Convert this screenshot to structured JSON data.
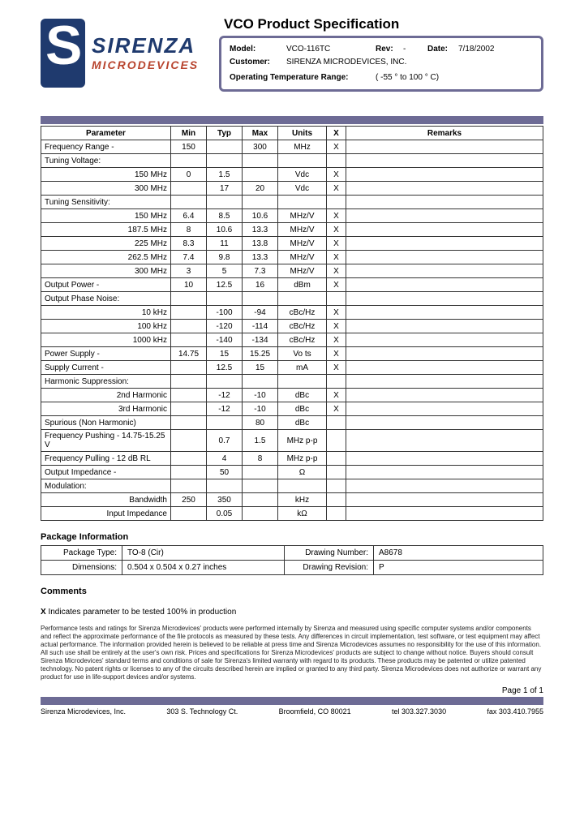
{
  "header": {
    "title": "VCO Product Specification",
    "model_label": "Model:",
    "model": "VCO-116TC",
    "rev_label": "Rev:",
    "rev": "-",
    "date_label": "Date:",
    "date": "7/18/2002",
    "customer_label": "Customer:",
    "customer": "SIRENZA MICRODEVICES, INC.",
    "temp_label": "Operating Temperature Range:",
    "temp": "( -55 ° to 100 ° C)",
    "logo_top": "SIRENZA",
    "logo_bottom": "MICRODEVICES"
  },
  "columns": [
    "Parameter",
    "Min",
    "Typ",
    "Max",
    "Units",
    "X",
    "Remarks"
  ],
  "rows": [
    {
      "param": "Frequency Range -",
      "align": "l",
      "min": "150",
      "typ": "",
      "max": "300",
      "units": "MHz",
      "x": "X",
      "remarks": ""
    },
    {
      "param": "Tuning Voltage:",
      "align": "l",
      "min": "",
      "typ": "",
      "max": "",
      "units": "",
      "x": "",
      "remarks": ""
    },
    {
      "param": "150 MHz",
      "align": "r",
      "min": "0",
      "typ": "1.5",
      "max": "",
      "units": "Vdc",
      "x": "X",
      "remarks": ""
    },
    {
      "param": "300 MHz",
      "align": "r",
      "min": "",
      "typ": "17",
      "max": "20",
      "units": "Vdc",
      "x": "X",
      "remarks": ""
    },
    {
      "param": "Tuning Sensitivity:",
      "align": "l",
      "min": "",
      "typ": "",
      "max": "",
      "units": "",
      "x": "",
      "remarks": ""
    },
    {
      "param": "150 MHz",
      "align": "r",
      "min": "6.4",
      "typ": "8.5",
      "max": "10.6",
      "units": "MHz/V",
      "x": "X",
      "remarks": ""
    },
    {
      "param": "187.5 MHz",
      "align": "r",
      "min": "8",
      "typ": "10.6",
      "max": "13.3",
      "units": "MHz/V",
      "x": "X",
      "remarks": ""
    },
    {
      "param": "225 MHz",
      "align": "r",
      "min": "8.3",
      "typ": "11",
      "max": "13.8",
      "units": "MHz/V",
      "x": "X",
      "remarks": ""
    },
    {
      "param": "262.5 MHz",
      "align": "r",
      "min": "7.4",
      "typ": "9.8",
      "max": "13.3",
      "units": "MHz/V",
      "x": "X",
      "remarks": ""
    },
    {
      "param": "300 MHz",
      "align": "r",
      "min": "3",
      "typ": "5",
      "max": "7.3",
      "units": "MHz/V",
      "x": "X",
      "remarks": ""
    },
    {
      "param": "Output Power -",
      "align": "l",
      "min": "10",
      "typ": "12.5",
      "max": "16",
      "units": "dBm",
      "x": "X",
      "remarks": ""
    },
    {
      "param": "Output Phase Noise:",
      "align": "l",
      "min": "",
      "typ": "",
      "max": "",
      "units": "",
      "x": "",
      "remarks": ""
    },
    {
      "param": "10 kHz",
      "align": "r",
      "min": "",
      "typ": "-100",
      "max": "-94",
      "units": "cBc/Hz",
      "x": "X",
      "remarks": ""
    },
    {
      "param": "100 kHz",
      "align": "r",
      "min": "",
      "typ": "-120",
      "max": "-114",
      "units": "cBc/Hz",
      "x": "X",
      "remarks": ""
    },
    {
      "param": "1000 kHz",
      "align": "r",
      "min": "",
      "typ": "-140",
      "max": "-134",
      "units": "cBc/Hz",
      "x": "X",
      "remarks": ""
    },
    {
      "param": "Power Supply -",
      "align": "l",
      "min": "14.75",
      "typ": "15",
      "max": "15.25",
      "units": "Vo ts",
      "x": "X",
      "remarks": ""
    },
    {
      "param": "Supply Current -",
      "align": "l",
      "min": "",
      "typ": "12.5",
      "max": "15",
      "units": "mA",
      "x": "X",
      "remarks": ""
    },
    {
      "param": "Harmonic Suppression:",
      "align": "l",
      "min": "",
      "typ": "",
      "max": "",
      "units": "",
      "x": "",
      "remarks": ""
    },
    {
      "param": "2nd Harmonic",
      "align": "r",
      "min": "",
      "typ": "-12",
      "max": "-10",
      "units": "dBc",
      "x": "X",
      "remarks": ""
    },
    {
      "param": "3rd Harmonic",
      "align": "r",
      "min": "",
      "typ": "-12",
      "max": "-10",
      "units": "dBc",
      "x": "X",
      "remarks": ""
    },
    {
      "param": "Spurious (Non Harmonic)",
      "align": "l",
      "min": "",
      "typ": "",
      "max": "80",
      "units": "dBc",
      "x": "",
      "remarks": ""
    },
    {
      "param": "Frequency Pushing - 14.75-15.25 V",
      "align": "l",
      "min": "",
      "typ": "0.7",
      "max": "1.5",
      "units": "MHz p-p",
      "x": "",
      "remarks": ""
    },
    {
      "param": "Frequency Pulling - 12 dB RL",
      "align": "l",
      "min": "",
      "typ": "4",
      "max": "8",
      "units": "MHz p-p",
      "x": "",
      "remarks": ""
    },
    {
      "param": "Output Impedance -",
      "align": "l",
      "min": "",
      "typ": "50",
      "max": "",
      "units": "Ω",
      "x": "",
      "remarks": ""
    },
    {
      "param": "Modulation:",
      "align": "l",
      "min": "",
      "typ": "",
      "max": "",
      "units": "",
      "x": "",
      "remarks": ""
    },
    {
      "param": "Bandwidth",
      "align": "r",
      "min": "250",
      "typ": "350",
      "max": "",
      "units": "kHz",
      "x": "",
      "remarks": ""
    },
    {
      "param": "Input Impedance",
      "align": "r",
      "min": "",
      "typ": "0.05",
      "max": "",
      "units": "kΩ",
      "x": "",
      "remarks": ""
    }
  ],
  "pkg": {
    "title": "Package Information",
    "type_label": "Package Type:",
    "type": "TO-8 (Cir)",
    "drawing_num_label": "Drawing Number:",
    "drawing_num": "A8678",
    "dim_label": "Dimensions:",
    "dim": "0.504 x 0.504 x 0.27 inches",
    "drawing_rev_label": "Drawing Revision:",
    "drawing_rev": "P"
  },
  "comments": {
    "title": "Comments",
    "note": "X Indicates parameter to be tested 100% in production"
  },
  "disclaimer": "Performance tests and ratings for Sirenza Microdevices' products were performed internally by Sirenza and measured using specific computer systems and/or components and reflect the approximate performance of the file protocols as measured by these tests. Any differences in circuit implementation, test software, or test equipment may affect actual performance. The information provided herein is believed to be reliable at press time and Sirenza Microdevices assumes no responsibility for the use of this information. All such use shall be entirely at the user's own risk. Prices and specifications for Sirenza Microdevices' products are subject to change without notice. Buyers should consult Sirenza Microdevices' standard terms and conditions of sale for Sirenza's limited warranty with regard to its products. These products may be patented or utilize patented technology. No patent rights or licenses to any of the circuits described herein are implied or granted to any third party. Sirenza Microdevices does not authorize or warrant any product for use in life-support devices and/or systems.",
  "page_num": "Page 1 of 1",
  "footer": {
    "company": "Sirenza Microdevices, Inc.",
    "address": "303 S. Technology Ct.",
    "city": "Broomfield, CO 80021",
    "tel": "tel 303.327.3030",
    "fax": "fax 303.410.7955"
  },
  "colors": {
    "accent": "#6d6b95",
    "logo_blue": "#1f3a6e",
    "logo_red": "#b8442e"
  }
}
